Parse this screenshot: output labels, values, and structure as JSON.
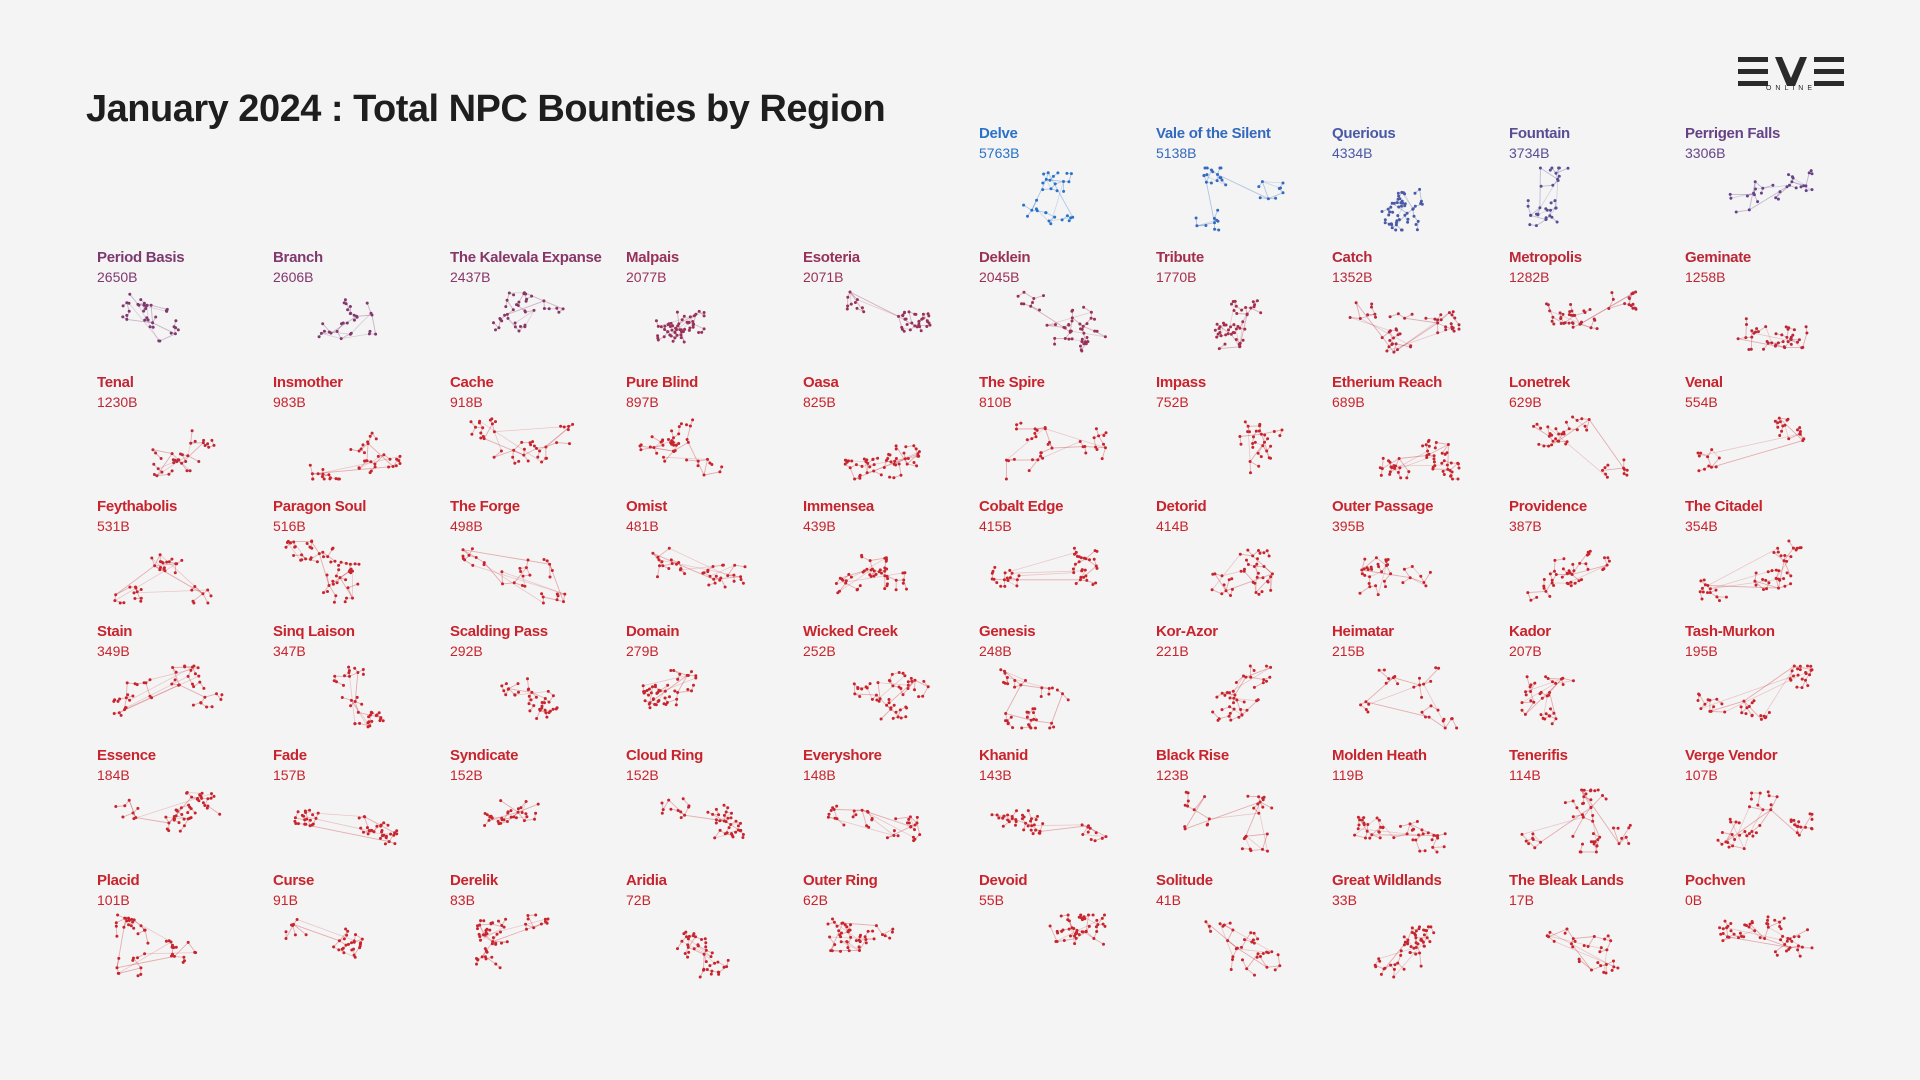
{
  "title": "January 2024 : Total NPC Bounties by Region",
  "logo": {
    "name": "EVE",
    "sub": "ONLINE"
  },
  "chart_data": {
    "type": "small-multiples",
    "title": "January 2024 : Total NPC Bounties by Region",
    "unit": "B",
    "color_scale": {
      "high": "#2a72c8",
      "mid": "#6e3d7e",
      "low": "#c8242d"
    },
    "regions": [
      {
        "name": "Delve",
        "value": 5763
      },
      {
        "name": "Vale of the Silent",
        "value": 5138
      },
      {
        "name": "Querious",
        "value": 4334
      },
      {
        "name": "Fountain",
        "value": 3734
      },
      {
        "name": "Perrigen Falls",
        "value": 3306
      },
      {
        "name": "Period Basis",
        "value": 2650
      },
      {
        "name": "Branch",
        "value": 2606
      },
      {
        "name": "The Kalevala Expanse",
        "value": 2437
      },
      {
        "name": "Malpais",
        "value": 2077
      },
      {
        "name": "Esoteria",
        "value": 2071
      },
      {
        "name": "Deklein",
        "value": 2045
      },
      {
        "name": "Tribute",
        "value": 1770
      },
      {
        "name": "Catch",
        "value": 1352
      },
      {
        "name": "Metropolis",
        "value": 1282
      },
      {
        "name": "Geminate",
        "value": 1258
      },
      {
        "name": "Tenal",
        "value": 1230
      },
      {
        "name": "Insmother",
        "value": 983
      },
      {
        "name": "Cache",
        "value": 918
      },
      {
        "name": "Pure Blind",
        "value": 897
      },
      {
        "name": "Oasa",
        "value": 825
      },
      {
        "name": "The Spire",
        "value": 810
      },
      {
        "name": "Impass",
        "value": 752
      },
      {
        "name": "Etherium Reach",
        "value": 689
      },
      {
        "name": "Lonetrek",
        "value": 629
      },
      {
        "name": "Venal",
        "value": 554
      },
      {
        "name": "Feythabolis",
        "value": 531
      },
      {
        "name": "Paragon Soul",
        "value": 516
      },
      {
        "name": "The Forge",
        "value": 498
      },
      {
        "name": "Omist",
        "value": 481
      },
      {
        "name": "Immensea",
        "value": 439
      },
      {
        "name": "Cobalt Edge",
        "value": 415
      },
      {
        "name": "Detorid",
        "value": 414
      },
      {
        "name": "Outer Passage",
        "value": 395
      },
      {
        "name": "Providence",
        "value": 387
      },
      {
        "name": "The Citadel",
        "value": 354
      },
      {
        "name": "Stain",
        "value": 349
      },
      {
        "name": "Sinq Laison",
        "value": 347
      },
      {
        "name": "Scalding Pass",
        "value": 292
      },
      {
        "name": "Domain",
        "value": 279
      },
      {
        "name": "Wicked Creek",
        "value": 252
      },
      {
        "name": "Genesis",
        "value": 248
      },
      {
        "name": "Kor-Azor",
        "value": 221
      },
      {
        "name": "Heimatar",
        "value": 215
      },
      {
        "name": "Kador",
        "value": 207
      },
      {
        "name": "Tash-Murkon",
        "value": 195
      },
      {
        "name": "Essence",
        "value": 184
      },
      {
        "name": "Fade",
        "value": 157
      },
      {
        "name": "Syndicate",
        "value": 152
      },
      {
        "name": "Cloud Ring",
        "value": 152
      },
      {
        "name": "Everyshore",
        "value": 148
      },
      {
        "name": "Khanid",
        "value": 143
      },
      {
        "name": "Black Rise",
        "value": 123
      },
      {
        "name": "Molden Heath",
        "value": 119
      },
      {
        "name": "Tenerifis",
        "value": 114
      },
      {
        "name": "Verge Vendor",
        "value": 107
      },
      {
        "name": "Placid",
        "value": 101
      },
      {
        "name": "Curse",
        "value": 91
      },
      {
        "name": "Derelik",
        "value": 83
      },
      {
        "name": "Aridia",
        "value": 72
      },
      {
        "name": "Outer Ring",
        "value": 62
      },
      {
        "name": "Devoid",
        "value": 55
      },
      {
        "name": "Solitude",
        "value": 41
      },
      {
        "name": "Great Wildlands",
        "value": 33
      },
      {
        "name": "The Bleak Lands",
        "value": 17
      },
      {
        "name": "Pochven",
        "value": 0
      }
    ]
  }
}
